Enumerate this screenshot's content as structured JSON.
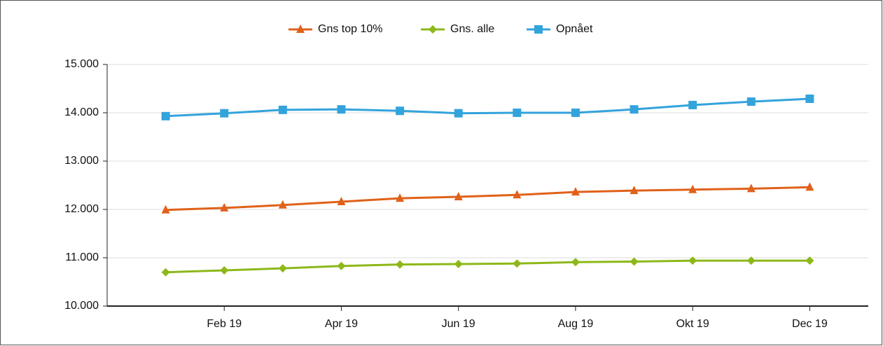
{
  "chart_data": {
    "type": "line",
    "categories": [
      null,
      "Feb 19",
      null,
      "Apr 19",
      null,
      "Jun 19",
      null,
      "Aug 19",
      null,
      "Okt 19",
      null,
      "Dec 19"
    ],
    "series": [
      {
        "name": "Gns top 10%",
        "color": "#e0611a",
        "marker": "triangle",
        "values": [
          11990,
          12030,
          12090,
          12160,
          12230,
          12260,
          12300,
          12360,
          12390,
          12410,
          12430,
          12460
        ]
      },
      {
        "name": "Gns. alle",
        "color": "#8db819",
        "marker": "diamond",
        "values": [
          10700,
          10740,
          10780,
          10830,
          10860,
          10870,
          10880,
          10910,
          10920,
          10940,
          10940,
          10940
        ]
      },
      {
        "name": "Opnået",
        "color": "#33a3dc",
        "marker": "square",
        "values": [
          13930,
          13990,
          14060,
          14070,
          14040,
          13990,
          14000,
          14000,
          14070,
          14160,
          14230,
          14290
        ]
      }
    ],
    "ylim": [
      10000,
      15000
    ],
    "yticks": [
      {
        "value": 10000,
        "label": "10.000"
      },
      {
        "value": 11000,
        "label": "11.000"
      },
      {
        "value": 12000,
        "label": "12.000"
      },
      {
        "value": 13000,
        "label": "13.000"
      },
      {
        "value": 14000,
        "label": "14.000"
      },
      {
        "value": 15000,
        "label": "15.000"
      }
    ],
    "grid": true,
    "legend": "top"
  }
}
